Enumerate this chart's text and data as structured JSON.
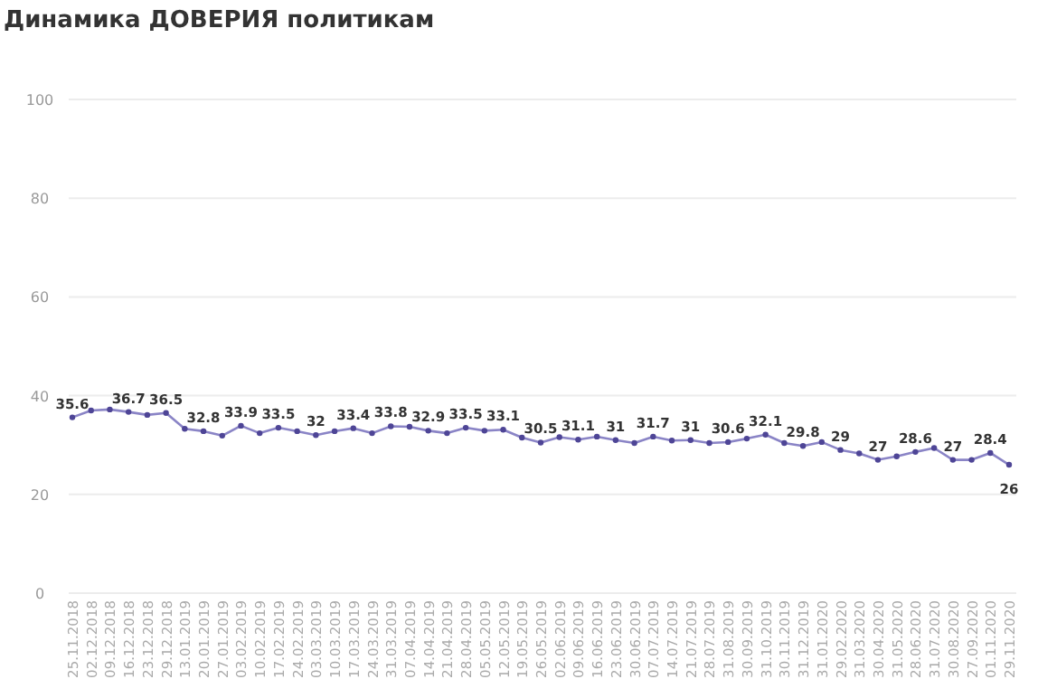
{
  "chart_data": {
    "type": "line",
    "title": "Динамика ДОВЕРИЯ политикам",
    "categories": [
      "25.11.2018",
      "02.12.2018",
      "09.12.2018",
      "16.12.2018",
      "23.12.2018",
      "29.12.2018",
      "13.01.2019",
      "20.01.2019",
      "27.01.2019",
      "03.02.2019",
      "10.02.2019",
      "17.02.2019",
      "24.02.2019",
      "03.03.2019",
      "10.03.2019",
      "17.03.2019",
      "24.03.2019",
      "31.03.2019",
      "07.04.2019",
      "14.04.2019",
      "21.04.2019",
      "28.04.2019",
      "05.05.2019",
      "12.05.2019",
      "19.05.2019",
      "26.05.2019",
      "02.06.2019",
      "09.06.2019",
      "16.06.2019",
      "23.06.2019",
      "30.06.2019",
      "07.07.2019",
      "14.07.2019",
      "21.07.2019",
      "28.07.2019",
      "31.08.2019",
      "30.09.2019",
      "31.10.2019",
      "30.11.2019",
      "31.12.2019",
      "31.01.2020",
      "29.02.2020",
      "31.03.2020",
      "30.04.2020",
      "31.05.2020",
      "28.06.2020",
      "31.07.2020",
      "30.08.2020",
      "27.09.2020",
      "01.11.2020",
      "29.11.2020"
    ],
    "series": [
      {
        "color": "#8a84c6",
        "values": [
          35.6,
          37.0,
          37.2,
          36.7,
          36.1,
          36.5,
          33.3,
          32.8,
          31.9,
          33.9,
          32.4,
          33.5,
          32.8,
          32,
          32.8,
          33.4,
          32.4,
          33.8,
          33.7,
          32.9,
          32.4,
          33.5,
          32.9,
          33.1,
          31.5,
          30.5,
          31.6,
          31.1,
          31.7,
          31,
          30.4,
          31.7,
          30.9,
          31,
          30.4,
          30.6,
          31.3,
          32.1,
          30.4,
          29.8,
          30.6,
          29,
          28.3,
          27,
          27.7,
          28.6,
          29.4,
          27,
          27.0,
          28.4,
          26
        ],
        "value_labels": [
          "35.6",
          null,
          null,
          "36.7",
          null,
          "36.5",
          null,
          "32.8",
          null,
          "33.9",
          null,
          "33.5",
          null,
          "32",
          null,
          "33.4",
          null,
          "33.8",
          null,
          "32.9",
          null,
          "33.5",
          null,
          "33.1",
          null,
          "30.5",
          null,
          "31.1",
          null,
          "31",
          null,
          "31.7",
          null,
          "31",
          null,
          "30.6",
          null,
          "32.1",
          null,
          "29.8",
          null,
          "29",
          null,
          "27",
          null,
          "28.6",
          null,
          "27",
          null,
          "28.4",
          "26"
        ]
      }
    ],
    "ylim": [
      0,
      100
    ],
    "yticks": [
      0,
      20,
      40,
      60,
      80,
      100
    ],
    "grid": "y",
    "marker": "circle",
    "line_style": "solid"
  }
}
